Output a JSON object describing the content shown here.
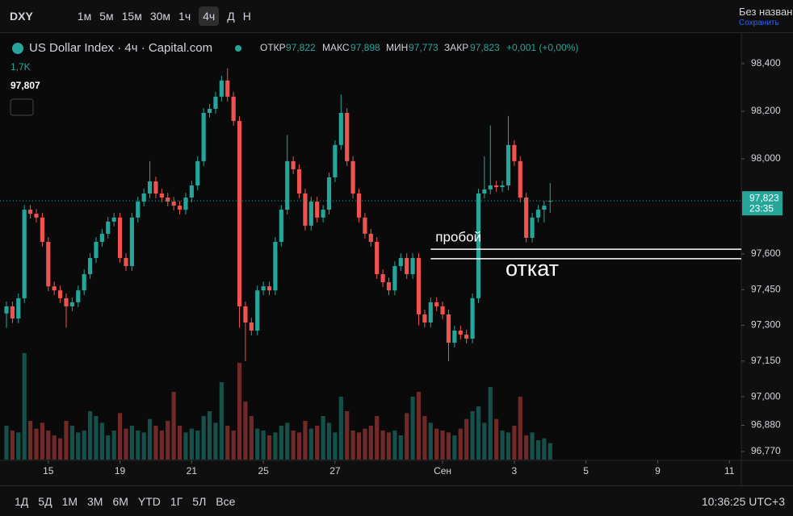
{
  "toolbar": {
    "symbol": "DXY",
    "intervals": [
      "1м",
      "5м",
      "15м",
      "30м",
      "1ч",
      "4ч",
      "Д",
      "Н"
    ],
    "layout_name": "Без назван",
    "save": "Сохранить"
  },
  "header": {
    "title": "US Dollar Index · 4ч · Capital.com",
    "open_label": "ОТКР",
    "open": "97,822",
    "high_label": "МАКС",
    "high": "97,898",
    "low_label": "МИН",
    "low": "97,773",
    "close_label": "ЗАКР",
    "close": "97,823",
    "change": "+0,001 (+0,00%)",
    "volume": "1,7K",
    "ma": "97,807"
  },
  "chart_data": {
    "type": "candlestick",
    "open": [
      97.35,
      97.38,
      97.329,
      97.414,
      97.786,
      97.769,
      97.753,
      97.651,
      97.464,
      97.447,
      97.414,
      97.38,
      97.397,
      97.447,
      97.515,
      97.583,
      97.651,
      97.685,
      97.736,
      97.753,
      97.583,
      97.549,
      97.753,
      97.82,
      97.854,
      97.905,
      97.854,
      97.837,
      97.82,
      97.803,
      97.786,
      97.837,
      97.888,
      97.99,
      98.193,
      98.21,
      98.261,
      98.329,
      98.261,
      98.159,
      97.38,
      97.312,
      97.278,
      97.447,
      97.464,
      97.447,
      97.651,
      97.786,
      97.99,
      97.956,
      97.854,
      97.719,
      97.82,
      97.753,
      97.786,
      97.922,
      98.058,
      98.193,
      97.99,
      97.854,
      97.753,
      97.685,
      97.651,
      97.515,
      97.481,
      97.447,
      97.549,
      97.583,
      97.515,
      97.583,
      97.346,
      97.312,
      97.397,
      97.38,
      97.346,
      97.227,
      97.278,
      97.261,
      97.244,
      97.414,
      97.854,
      97.871,
      97.888,
      97.881,
      97.888,
      98.058,
      97.99,
      97.837,
      97.668,
      97.753,
      97.786,
      97.822
    ],
    "high": [
      97.4,
      97.4,
      97.434,
      97.806,
      97.806,
      97.789,
      97.773,
      97.671,
      97.484,
      97.467,
      97.434,
      97.417,
      97.467,
      97.535,
      97.603,
      97.671,
      97.705,
      97.756,
      97.773,
      97.773,
      97.603,
      97.773,
      97.84,
      97.874,
      97.99,
      97.925,
      97.874,
      97.857,
      97.84,
      97.823,
      97.857,
      97.908,
      98.01,
      98.213,
      98.23,
      98.281,
      98.349,
      98.38,
      98.281,
      98.179,
      97.4,
      97.332,
      97.467,
      97.484,
      97.484,
      97.671,
      97.806,
      98.1,
      98.01,
      97.976,
      97.874,
      97.84,
      97.84,
      97.806,
      97.942,
      98.078,
      98.27,
      98.213,
      98.01,
      97.874,
      97.773,
      97.705,
      97.671,
      97.535,
      97.501,
      97.569,
      97.603,
      97.603,
      97.603,
      97.603,
      97.366,
      97.417,
      97.417,
      97.4,
      97.366,
      97.298,
      97.298,
      97.281,
      97.434,
      97.874,
      98.01,
      98.14,
      97.908,
      97.908,
      98.18,
      98.078,
      98.01,
      97.857,
      97.773,
      97.806,
      97.823,
      97.898
    ],
    "low": [
      97.29,
      97.309,
      97.309,
      97.394,
      97.749,
      97.733,
      97.631,
      97.444,
      97.427,
      97.394,
      97.29,
      97.36,
      97.377,
      97.427,
      97.495,
      97.563,
      97.631,
      97.665,
      97.716,
      97.563,
      97.529,
      97.529,
      97.733,
      97.8,
      97.834,
      97.834,
      97.817,
      97.8,
      97.783,
      97.766,
      97.766,
      97.817,
      97.868,
      97.97,
      98.173,
      98.19,
      98.241,
      98.241,
      98.139,
      97.29,
      97.15,
      97.258,
      97.258,
      97.427,
      97.427,
      97.427,
      97.631,
      97.766,
      97.936,
      97.834,
      97.699,
      97.699,
      97.733,
      97.733,
      97.766,
      97.902,
      98.038,
      97.97,
      97.834,
      97.733,
      97.665,
      97.631,
      97.495,
      97.461,
      97.427,
      97.427,
      97.529,
      97.495,
      97.495,
      97.3,
      97.292,
      97.292,
      97.36,
      97.326,
      97.15,
      97.207,
      97.241,
      97.224,
      97.224,
      97.394,
      97.834,
      97.851,
      97.861,
      97.861,
      97.868,
      97.97,
      97.817,
      97.648,
      97.648,
      97.733,
      97.733,
      97.773
    ],
    "close": [
      97.38,
      97.329,
      97.414,
      97.786,
      97.769,
      97.753,
      97.651,
      97.464,
      97.447,
      97.414,
      97.38,
      97.397,
      97.447,
      97.515,
      97.583,
      97.651,
      97.685,
      97.736,
      97.753,
      97.583,
      97.549,
      97.753,
      97.82,
      97.854,
      97.905,
      97.854,
      97.837,
      97.82,
      97.803,
      97.786,
      97.837,
      97.888,
      97.99,
      98.193,
      98.21,
      98.261,
      98.329,
      98.261,
      98.159,
      97.38,
      97.312,
      97.278,
      97.447,
      97.464,
      97.447,
      97.651,
      97.786,
      97.99,
      97.956,
      97.854,
      97.719,
      97.82,
      97.753,
      97.786,
      97.922,
      98.058,
      98.193,
      97.99,
      97.854,
      97.753,
      97.685,
      97.651,
      97.515,
      97.481,
      97.447,
      97.549,
      97.583,
      97.515,
      97.583,
      97.346,
      97.312,
      97.397,
      97.38,
      97.346,
      97.227,
      97.278,
      97.261,
      97.244,
      97.414,
      97.854,
      97.871,
      97.888,
      97.881,
      97.888,
      98.058,
      97.99,
      97.837,
      97.668,
      97.753,
      97.786,
      97.803,
      97.823
    ],
    "volume": [
      3.5,
      3.0,
      2.8,
      11.0,
      4.0,
      3.2,
      3.8,
      3.0,
      2.5,
      2.2,
      4.0,
      3.5,
      2.8,
      3.0,
      5.0,
      4.5,
      3.8,
      2.5,
      3.0,
      4.8,
      3.2,
      3.5,
      3.0,
      2.8,
      4.2,
      3.5,
      3.0,
      4.0,
      7.0,
      3.5,
      2.8,
      3.2,
      3.0,
      4.5,
      5.0,
      3.8,
      8.0,
      3.5,
      3.0,
      10.0,
      6.0,
      4.5,
      3.2,
      3.0,
      2.5,
      2.8,
      3.5,
      3.8,
      3.0,
      2.8,
      4.0,
      3.2,
      3.5,
      4.5,
      3.8,
      2.8,
      6.5,
      5.0,
      3.0,
      2.8,
      3.2,
      3.5,
      4.5,
      3.0,
      2.8,
      3.0,
      2.5,
      4.8,
      6.5,
      7.0,
      4.5,
      3.8,
      3.2,
      3.0,
      2.8,
      2.5,
      3.2,
      4.2,
      5.0,
      5.5,
      3.8,
      7.5,
      4.2,
      3.0,
      2.8,
      3.5,
      6.5,
      2.5,
      2.8,
      2.0,
      2.2,
      1.7
    ],
    "up_color": "#26a69a",
    "down_color": "#ef5350",
    "xlim": [
      0,
      123
    ],
    "xticks": [
      {
        "value": 7,
        "label": "15"
      },
      {
        "value": 19,
        "label": "19"
      },
      {
        "value": 31,
        "label": "21"
      },
      {
        "value": 43,
        "label": "25"
      },
      {
        "value": 55,
        "label": "27"
      },
      {
        "value": 73,
        "label": "Сен"
      },
      {
        "value": 85,
        "label": "3"
      },
      {
        "value": 97,
        "label": "5"
      },
      {
        "value": 109,
        "label": "9"
      },
      {
        "value": 121,
        "label": "11"
      }
    ],
    "ylim": [
      96.736,
      98.525
    ],
    "yticks": [
      {
        "value": 98.4,
        "label": "98,400"
      },
      {
        "value": 98.2,
        "label": "98,200"
      },
      {
        "value": 98.0,
        "label": "98,000"
      },
      {
        "value": 97.6,
        "label": "97,600"
      },
      {
        "value": 97.45,
        "label": "97,450"
      },
      {
        "value": 97.3,
        "label": "97,300"
      },
      {
        "value": 97.15,
        "label": "97,150"
      },
      {
        "value": 97.0,
        "label": "97,000"
      },
      {
        "value": 96.88,
        "label": "96,880"
      },
      {
        "value": 96.77,
        "label": "96,770"
      }
    ],
    "last_price": {
      "value": 97.823,
      "label": "97,823",
      "countdown": "23:35"
    },
    "levels": [
      97.62,
      97.58
    ],
    "annotations": [
      "пробой",
      "откат"
    ]
  },
  "footer": {
    "ranges": [
      "1Д",
      "5Д",
      "1М",
      "3М",
      "6М",
      "YTD",
      "1Г",
      "5Л",
      "Все"
    ],
    "time": "10:36:25 UTC+3"
  }
}
